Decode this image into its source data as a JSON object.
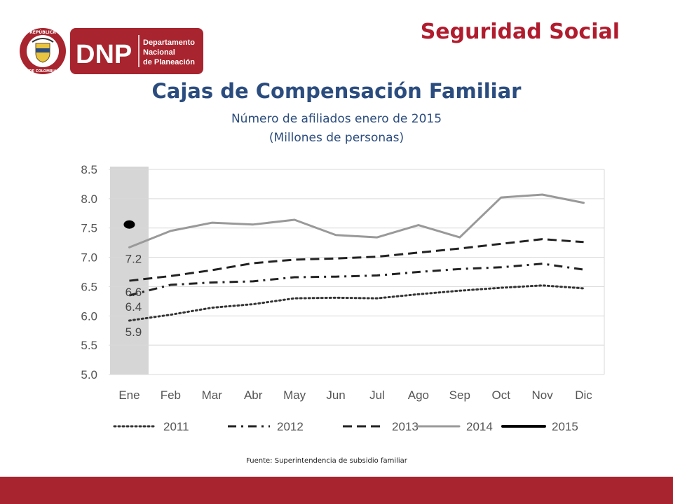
{
  "header": {
    "section_title": "Seguridad Social",
    "logo": {
      "seal_text_top": "REPÚBLICA",
      "seal_text_bottom": "DE COLOMBIA",
      "brand": "DNP",
      "line1": "Departamento",
      "line2": "Nacional",
      "line3": "de Planeación"
    }
  },
  "colors": {
    "brand_red": "#a8242e",
    "title_blue": "#2b4c7e",
    "series_gray": "#999999",
    "highlight_band": "#d6d6d6"
  },
  "chart_data": {
    "type": "line",
    "title": "Cajas de Compensación Familiar",
    "subtitle_line1": "Número de afiliados enero de 2015",
    "subtitle_line2": "(Millones de personas)",
    "categories": [
      "Ene",
      "Feb",
      "Mar",
      "Abr",
      "May",
      "Jun",
      "Jul",
      "Ago",
      "Sep",
      "Oct",
      "Nov",
      "Dic"
    ],
    "ylim": [
      5.0,
      8.5
    ],
    "yticks": [
      "8.5",
      "8.0",
      "7.5",
      "7.0",
      "6.5",
      "6.0",
      "5.5",
      "5.0"
    ],
    "grid": true,
    "legend_position": "bottom",
    "highlighted_category": "Ene",
    "series": [
      {
        "name": "2011",
        "style": "dotted",
        "values": [
          5.92,
          6.02,
          6.14,
          6.2,
          6.3,
          6.31,
          6.3,
          6.37,
          6.43,
          6.48,
          6.52,
          6.47
        ]
      },
      {
        "name": "2012",
        "style": "dash-dot",
        "values": [
          6.35,
          6.53,
          6.57,
          6.59,
          6.66,
          6.67,
          6.69,
          6.75,
          6.8,
          6.83,
          6.89,
          6.79
        ]
      },
      {
        "name": "2013",
        "style": "dashed",
        "values": [
          6.6,
          6.68,
          6.78,
          6.9,
          6.96,
          6.98,
          7.01,
          7.08,
          7.15,
          7.23,
          7.31,
          7.26
        ]
      },
      {
        "name": "2014",
        "style": "solid-gray",
        "values": [
          7.17,
          7.45,
          7.59,
          7.56,
          7.64,
          7.38,
          7.34,
          7.55,
          7.34,
          8.02,
          8.07,
          7.93
        ]
      },
      {
        "name": "2015",
        "style": "solid-black",
        "values": [
          7.56,
          null,
          null,
          null,
          null,
          null,
          null,
          null,
          null,
          null,
          null,
          null
        ]
      }
    ],
    "data_labels": [
      {
        "category": "Ene",
        "value": "7.2"
      },
      {
        "category": "Ene",
        "value": "6.6"
      },
      {
        "category": "Ene",
        "value": "6.4"
      },
      {
        "category": "Ene",
        "value": "5.9"
      }
    ]
  },
  "source": "Fuente: Superintendencia de subsidio familiar"
}
